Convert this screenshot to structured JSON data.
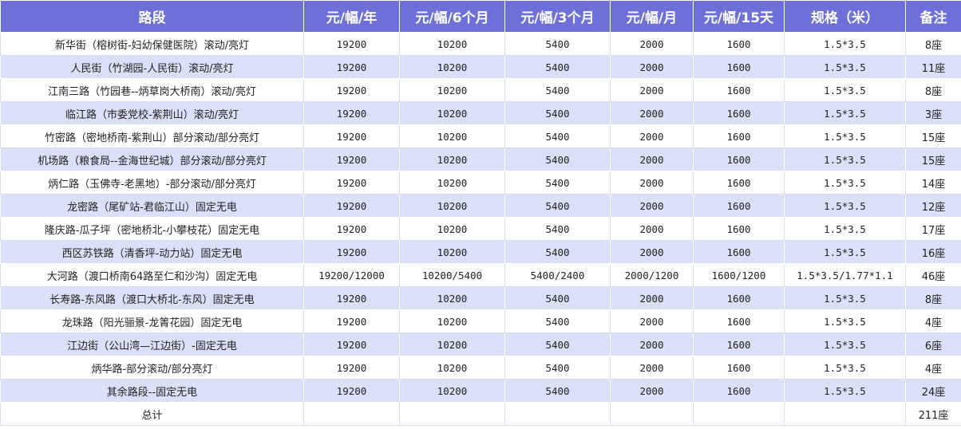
{
  "table": {
    "headers": [
      "路段",
      "元/幅/年",
      "元/幅/6个月",
      "元/幅/3个月",
      "元/幅/月",
      "元/幅/15天",
      "规格（米）",
      "备注"
    ],
    "rows": [
      [
        "新华街（榕树街-妇幼保健医院）滚动/亮灯",
        "19200",
        "10200",
        "5400",
        "2000",
        "1600",
        "1.5*3.5",
        "8座"
      ],
      [
        "人民街（竹湖园-人民街）滚动/亮灯",
        "19200",
        "10200",
        "5400",
        "2000",
        "1600",
        "1.5*3.5",
        "11座"
      ],
      [
        "江南三路（竹园巷--炳草岗大桥南）滚动/亮灯",
        "19200",
        "10200",
        "5400",
        "2000",
        "1600",
        "1.5*3.5",
        "8座"
      ],
      [
        "临江路（市委党校-紫荆山）滚动/亮灯",
        "19200",
        "10200",
        "5400",
        "2000",
        "1600",
        "1.5*3.5",
        "3座"
      ],
      [
        "竹密路（密地桥南-紫荆山）部分滚动/部分亮灯",
        "19200",
        "10200",
        "5400",
        "2000",
        "1600",
        "1.5*3.5",
        "15座"
      ],
      [
        "机场路（粮食局--金海世纪城）部分滚动/部分亮灯",
        "19200",
        "10200",
        "5400",
        "2000",
        "1600",
        "1.5*3.5",
        "15座"
      ],
      [
        "炳仁路（玉佛寺-老黑地）-部分滚动/部分亮灯",
        "19200",
        "10200",
        "5400",
        "2000",
        "1600",
        "1.5*3.5",
        "14座"
      ],
      [
        "龙密路（尾矿站-君临江山）固定无电",
        "19200",
        "10200",
        "5400",
        "2000",
        "1600",
        "1.5*3.5",
        "12座"
      ],
      [
        "隆庆路-瓜子坪（密地桥北-小攀枝花）固定无电",
        "19200",
        "10200",
        "5400",
        "2000",
        "1600",
        "1.5*3.5",
        "17座"
      ],
      [
        "西区苏铁路（清香坪-动力站）固定无电",
        "19200",
        "10200",
        "5400",
        "2000",
        "1600",
        "1.5*3.5",
        "16座"
      ],
      [
        "大河路（渡口桥南64路至仁和沙沟）固定无电",
        "19200/12000",
        "10200/5400",
        "5400/2400",
        "2000/1200",
        "1600/1200",
        "1.5*3.5/1.77*1.1",
        "46座"
      ],
      [
        "长寿路-东风路（渡口大桥北-东风）固定无电",
        "19200",
        "10200",
        "5400",
        "2000",
        "1600",
        "1.5*3.5",
        "8座"
      ],
      [
        "龙珠路（阳光骊景-龙箐花园）固定无电",
        "19200",
        "10200",
        "5400",
        "2000",
        "1600",
        "1.5*3.5",
        "4座"
      ],
      [
        "江边街（公山湾—江边街）-固定无电",
        "19200",
        "10200",
        "5400",
        "2000",
        "1600",
        "1.5*3.5",
        "6座"
      ],
      [
        "炳华路-部分滚动/部分亮灯",
        "19200",
        "10200",
        "5400",
        "2000",
        "1600",
        "1.5*3.5",
        "4座"
      ],
      [
        "其余路段--固定无电",
        "19200",
        "10200",
        "5400",
        "2000",
        "1600",
        "1.5*3.5",
        "24座"
      ]
    ],
    "total": {
      "label": "总计",
      "note": "211座"
    }
  }
}
